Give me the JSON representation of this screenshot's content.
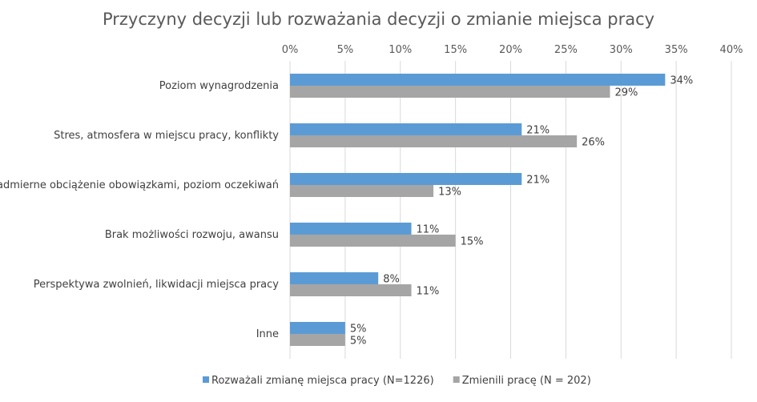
{
  "chart_data": {
    "type": "bar",
    "orientation": "horizontal",
    "title": "Przyczyny decyzji lub rozważania decyzji o zmianie miejsca pracy",
    "categories": [
      "Poziom wynagrodzenia",
      "Stres, atmosfera w miejscu pracy, konflikty",
      "Nadmierne obciążenie obowiązkami, poziom oczekiwań",
      "Brak możliwości rozwoju, awansu",
      "Perspektywa zwolnień, likwidacji miejsca pracy",
      "Inne"
    ],
    "series": [
      {
        "name": "Rozważali zmianę miejsca pracy (N=1226)",
        "values": [
          34,
          21,
          21,
          11,
          8,
          5
        ],
        "labels": [
          "34%",
          "21%",
          "21%",
          "11%",
          "8%",
          "5%"
        ],
        "color": "#5B9BD5"
      },
      {
        "name": "Zmienili pracę (N = 202)",
        "values": [
          29,
          26,
          13,
          15,
          11,
          5
        ],
        "labels": [
          "29%",
          "26%",
          "13%",
          "15%",
          "11%",
          "5%"
        ],
        "color": "#A5A5A5"
      }
    ],
    "xlim": [
      0,
      40
    ],
    "x_ticks": [
      "0%",
      "5%",
      "10%",
      "15%",
      "20%",
      "25%",
      "30%",
      "35%",
      "40%"
    ],
    "x_axis_position": "top",
    "grid": true,
    "legend_position": "bottom"
  }
}
